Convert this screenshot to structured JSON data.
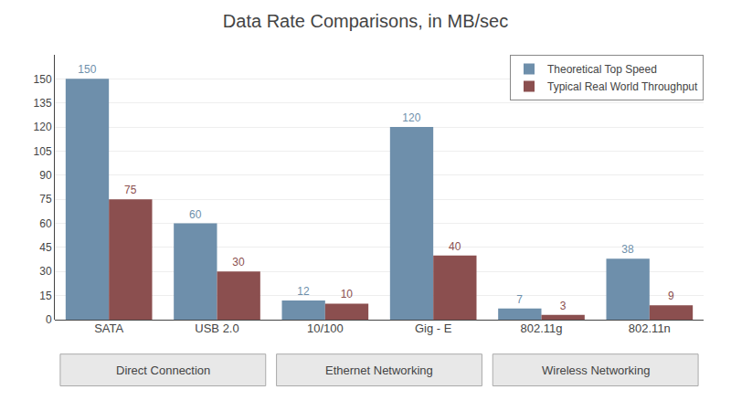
{
  "chart_data": {
    "type": "bar",
    "title": "Data Rate Comparisons, in MB/sec",
    "categories": [
      "SATA",
      "USB 2.0",
      "10/100",
      "Gig - E",
      "802.11g",
      "802.11n"
    ],
    "series": [
      {
        "name": "Theoretical Top Speed",
        "color": "#6e8fab",
        "values": [
          150,
          60,
          12,
          120,
          7,
          38
        ]
      },
      {
        "name": "Typical Real World Throughput",
        "color": "#8b4f4f",
        "values": [
          75,
          30,
          10,
          40,
          3,
          9
        ]
      }
    ],
    "ylim": [
      0,
      165
    ],
    "yticks": [
      0,
      15,
      30,
      45,
      60,
      75,
      90,
      105,
      120,
      135,
      150
    ],
    "grid": true,
    "legend": "upper right",
    "data_labels": true,
    "annotations": [
      {
        "text": "Direct Connection",
        "categories": [
          "SATA",
          "USB 2.0"
        ]
      },
      {
        "text": "Ethernet Networking",
        "categories": [
          "10/100",
          "Gig - E"
        ]
      },
      {
        "text": "Wireless Networking",
        "categories": [
          "802.11g",
          "802.11n"
        ]
      }
    ]
  }
}
